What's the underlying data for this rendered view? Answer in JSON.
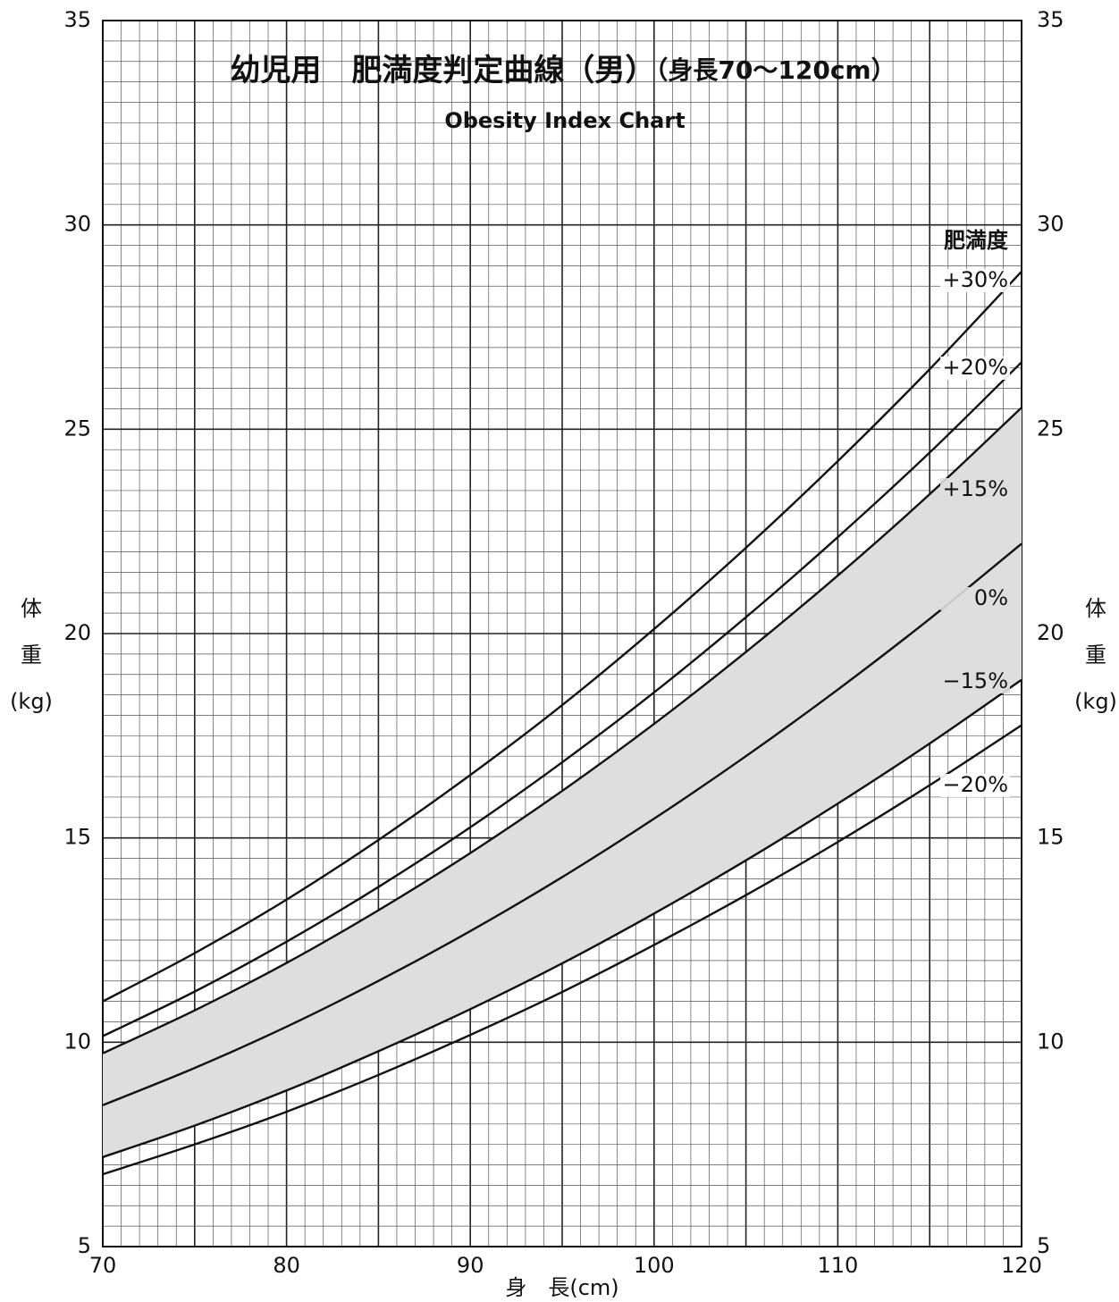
{
  "chart_data": {
    "type": "line",
    "title": "幼児用　肥満度判定曲線（男）",
    "title_note": "（身長70〜120cm）",
    "subtitle": "Obesity Index Chart",
    "xlabel": "身　長(cm)",
    "ylabel": [
      "体",
      "重",
      "(kg)"
    ],
    "legend_title": "肥満度",
    "x": [
      70,
      75,
      80,
      85,
      90,
      95,
      100,
      105,
      110,
      115,
      120
    ],
    "series": [
      {
        "name": "+30%",
        "color": "#111111",
        "values": [
          11.0,
          12.18,
          13.49,
          14.95,
          16.54,
          18.25,
          20.11,
          22.1,
          24.22,
          26.47,
          28.86
        ]
      },
      {
        "name": "+20%",
        "color": "#111111",
        "values": [
          10.15,
          11.24,
          12.46,
          13.8,
          15.26,
          16.85,
          18.56,
          20.4,
          22.36,
          24.43,
          26.64
        ]
      },
      {
        "name": "+15%",
        "color": "#111111",
        "values": [
          9.73,
          10.78,
          11.94,
          13.23,
          14.63,
          16.15,
          17.79,
          19.55,
          21.42,
          23.41,
          25.53
        ]
      },
      {
        "name": "0%",
        "color": "#111111",
        "values": [
          8.46,
          9.37,
          10.38,
          11.5,
          12.72,
          14.04,
          15.47,
          17.0,
          18.63,
          20.36,
          22.2
        ]
      },
      {
        "name": "−15%",
        "color": "#111111",
        "values": [
          7.19,
          7.96,
          8.82,
          9.78,
          10.81,
          11.93,
          13.15,
          14.45,
          15.84,
          17.31,
          18.87
        ]
      },
      {
        "name": "−20%",
        "color": "#111111",
        "values": [
          6.77,
          7.5,
          8.3,
          9.2,
          10.18,
          11.23,
          12.38,
          13.6,
          14.9,
          16.29,
          17.76
        ]
      }
    ],
    "shade_between": [
      "+15%",
      "−15%"
    ],
    "shade_color": "#dedede",
    "xlim": [
      70,
      120
    ],
    "ylim": [
      5,
      35
    ],
    "xticks": [
      70,
      80,
      90,
      100,
      110,
      120
    ],
    "yticks": [
      5,
      10,
      15,
      20,
      25,
      30,
      35
    ],
    "xmajor_step": 5,
    "xminor_step": 1,
    "yminor_step": 0.5,
    "grid": true
  }
}
